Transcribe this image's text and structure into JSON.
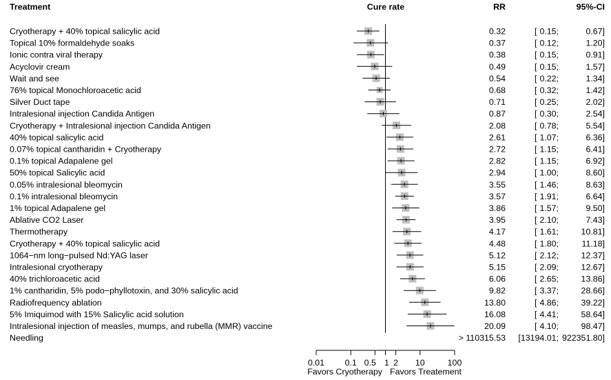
{
  "chart_data": {
    "type": "forest",
    "headers": {
      "treatment": "Treatment",
      "effect": "Cure rate",
      "rr": "RR",
      "ci": "95%-CI"
    },
    "axis": {
      "scale": "log",
      "xlim": [
        0.01,
        100
      ],
      "ticks": [
        "0.01",
        "0.1",
        "0.5",
        "1",
        "2",
        "10",
        "100"
      ],
      "reference_line": 1,
      "left_label": "Favors Cryotherapy",
      "right_label": "Favors Treatement"
    },
    "rows": [
      {
        "label": "Cryotherapy + 40% topical salicylic acid",
        "rr": 0.32,
        "lower": 0.15,
        "upper": 0.67,
        "rr_text": "0.32",
        "ci_lo_text": "0.15;",
        "ci_hi_text": "0.67]",
        "weight": 1.0
      },
      {
        "label": "Topical 10% formaldehyde soaks",
        "rr": 0.37,
        "lower": 0.12,
        "upper": 1.2,
        "rr_text": "0.37",
        "ci_lo_text": "0.12;",
        "ci_hi_text": "1.20]",
        "weight": 1.0
      },
      {
        "label": "Ionic contra viral therapy",
        "rr": 0.38,
        "lower": 0.15,
        "upper": 0.91,
        "rr_text": "0.38",
        "ci_lo_text": "0.15;",
        "ci_hi_text": "0.91]",
        "weight": 1.0
      },
      {
        "label": "Acyclovir cream",
        "rr": 0.49,
        "lower": 0.15,
        "upper": 1.57,
        "rr_text": "0.49",
        "ci_lo_text": "0.15;",
        "ci_hi_text": "1.57]",
        "weight": 1.0
      },
      {
        "label": "Wait and see",
        "rr": 0.54,
        "lower": 0.22,
        "upper": 1.34,
        "rr_text": "0.54",
        "ci_lo_text": "0.22;",
        "ci_hi_text": "1.34]",
        "weight": 1.0
      },
      {
        "label": "76% topical Monochloroacetic acid",
        "rr": 0.68,
        "lower": 0.32,
        "upper": 1.42,
        "rr_text": "0.68",
        "ci_lo_text": "0.32;",
        "ci_hi_text": "1.42]",
        "weight": 0.8
      },
      {
        "label": "Silver Duct tape",
        "rr": 0.71,
        "lower": 0.25,
        "upper": 2.02,
        "rr_text": "0.71",
        "ci_lo_text": "0.25;",
        "ci_hi_text": "2.02]",
        "weight": 1.0
      },
      {
        "label": " Intralesional injection Candida Antigen",
        "rr": 0.87,
        "lower": 0.3,
        "upper": 2.54,
        "rr_text": "0.87",
        "ci_lo_text": "0.30;",
        "ci_hi_text": "2.54]",
        "weight": 1.0
      },
      {
        "label": "Cryotherapy + Intralesional injection Candida Antigen",
        "rr": 2.08,
        "lower": 0.78,
        "upper": 5.54,
        "rr_text": "2.08",
        "ci_lo_text": "0.78;",
        "ci_hi_text": "5.54]",
        "weight": 1.0
      },
      {
        "label": "40% topical salicylic acid",
        "rr": 2.61,
        "lower": 1.07,
        "upper": 6.36,
        "rr_text": "2.61",
        "ci_lo_text": "1.07;",
        "ci_hi_text": "6.36]",
        "weight": 1.0
      },
      {
        "label": "0.07% topical cantharidin + Cryotherapy",
        "rr": 2.72,
        "lower": 1.15,
        "upper": 6.41,
        "rr_text": "2.72",
        "ci_lo_text": "1.15;",
        "ci_hi_text": "6.41]",
        "weight": 1.0
      },
      {
        "label": "0.1% topical Adapalene gel",
        "rr": 2.82,
        "lower": 1.15,
        "upper": 6.92,
        "rr_text": "2.82",
        "ci_lo_text": "1.15;",
        "ci_hi_text": "6.92]",
        "weight": 1.0
      },
      {
        "label": "50% topical Salicylic acid",
        "rr": 2.94,
        "lower": 1.0,
        "upper": 8.6,
        "rr_text": "2.94",
        "ci_lo_text": "1.00;",
        "ci_hi_text": "8.60]",
        "weight": 1.0
      },
      {
        "label": "0.05% intralesional bleomycin",
        "rr": 3.55,
        "lower": 1.46,
        "upper": 8.63,
        "rr_text": "3.55",
        "ci_lo_text": "1.46;",
        "ci_hi_text": "8.63]",
        "weight": 1.0
      },
      {
        "label": "0.1% intralesional bleomycin",
        "rr": 3.57,
        "lower": 1.91,
        "upper": 6.64,
        "rr_text": "3.57",
        "ci_lo_text": "1.91;",
        "ci_hi_text": "6.64]",
        "weight": 1.0
      },
      {
        "label": "1% topical Adapalene gel",
        "rr": 3.86,
        "lower": 1.57,
        "upper": 9.5,
        "rr_text": "3.86",
        "ci_lo_text": "1.57;",
        "ci_hi_text": "9.50]",
        "weight": 1.0
      },
      {
        "label": "Ablative CO2 Laser",
        "rr": 3.95,
        "lower": 2.1,
        "upper": 7.43,
        "rr_text": "3.95",
        "ci_lo_text": "2.10;",
        "ci_hi_text": "7.43]",
        "weight": 1.0
      },
      {
        "label": "Thermotherapy",
        "rr": 4.17,
        "lower": 1.61,
        "upper": 10.81,
        "rr_text": "4.17",
        "ci_lo_text": "1.61;",
        "ci_hi_text": "10.81]",
        "weight": 1.0
      },
      {
        "label": "Cryotherapy + 40% topical salicylic acid",
        "rr": 4.48,
        "lower": 1.8,
        "upper": 11.18,
        "rr_text": "4.48",
        "ci_lo_text": "1.80;",
        "ci_hi_text": "11.18]",
        "weight": 1.0
      },
      {
        "label": "1064−nm long−pulsed Nd:YAG laser",
        "rr": 5.12,
        "lower": 2.12,
        "upper": 12.37,
        "rr_text": "5.12",
        "ci_lo_text": "2.12;",
        "ci_hi_text": "12.37]",
        "weight": 1.0
      },
      {
        "label": "Intralesional cryotherapy",
        "rr": 5.15,
        "lower": 2.09,
        "upper": 12.67,
        "rr_text": "5.15",
        "ci_lo_text": "2.09;",
        "ci_hi_text": "12.67]",
        "weight": 1.0
      },
      {
        "label": "40% trichloroacetic acid",
        "rr": 6.06,
        "lower": 2.65,
        "upper": 13.86,
        "rr_text": "6.06",
        "ci_lo_text": "2.65;",
        "ci_hi_text": "13.86]",
        "weight": 1.0
      },
      {
        "label": "1% cantharidin, 5% podo−phyllotoxin, and 30% salicylic acid",
        "rr": 9.82,
        "lower": 3.37,
        "upper": 28.66,
        "rr_text": "9.82",
        "ci_lo_text": "3.37;",
        "ci_hi_text": "28.66]",
        "weight": 1.0
      },
      {
        "label": "Radiofrequency ablation",
        "rr": 13.8,
        "lower": 4.86,
        "upper": 39.22,
        "rr_text": "13.80",
        "ci_lo_text": "4.86;",
        "ci_hi_text": "39.22]",
        "weight": 1.0
      },
      {
        "label": "5% Imiquimod with 15% Salicylic acid solution",
        "rr": 16.08,
        "lower": 4.41,
        "upper": 58.64,
        "rr_text": "16.08",
        "ci_lo_text": "4.41;",
        "ci_hi_text": "58.64]",
        "weight": 1.0
      },
      {
        "label": "Intralesional injection of measles, mumps, and rubella (MMR) vaccine",
        "rr": 20.09,
        "lower": 4.1,
        "upper": 98.47,
        "rr_text": "20.09",
        "ci_lo_text": "4.10;",
        "ci_hi_text": "98.47]",
        "weight": 1.0
      },
      {
        "label": "Needling",
        "rr": 110315.53,
        "lower": 13194.01,
        "upper": 922351.8,
        "rr_text": "> 110315.53",
        "ci_lo_text": "[13194.01;",
        "ci_hi_text": "922351.80]",
        "weight": 0
      }
    ]
  },
  "colors": {
    "box": "#bfbfbf",
    "line": "#000000",
    "text": "#000000"
  }
}
